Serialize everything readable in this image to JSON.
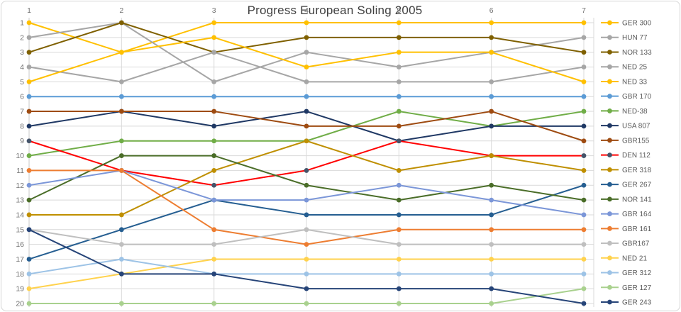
{
  "window": {
    "background": "#ffffff",
    "border_color": "#d6d6d6"
  },
  "chart_data": {
    "type": "line",
    "title": "Progress European Soling 2005",
    "title_color": "#404040",
    "xlabel": "",
    "ylabel": "",
    "x_ticks": [
      "1",
      "2",
      "3",
      "4",
      "5",
      "6",
      "7"
    ],
    "y_ticks": [
      "1",
      "2",
      "3",
      "4",
      "5",
      "6",
      "7",
      "8",
      "9",
      "10",
      "11",
      "12",
      "13",
      "14",
      "15",
      "16",
      "17",
      "18",
      "19",
      "20"
    ],
    "y_axis": {
      "min": 1,
      "max": 20,
      "inverted": true
    },
    "grid": true,
    "grid_color": "#d9d9d9",
    "axis_tick_color": "#737373",
    "legend_position": "right",
    "legend_text_color": "#595959",
    "series": [
      {
        "name": "GER 300",
        "color": "#FFC000",
        "marker": "#FFC000",
        "values": [
          1,
          3,
          1,
          1,
          1,
          1,
          1
        ]
      },
      {
        "name": "HUN 77",
        "color": "#A6A6A6",
        "marker": "#A6A6A6",
        "values": [
          2,
          1,
          5,
          3,
          4,
          3,
          2
        ]
      },
      {
        "name": "NOR 133",
        "color": "#7F6000",
        "marker": "#7F6000",
        "values": [
          3,
          1,
          3,
          2,
          2,
          2,
          3
        ]
      },
      {
        "name": "NED 25",
        "color": "#A6A6A6",
        "marker": "#A6A6A6",
        "values": [
          4,
          5,
          3,
          5,
          5,
          5,
          4
        ]
      },
      {
        "name": "NED 33",
        "color": "#FFC000",
        "marker": "#FFC000",
        "values": [
          5,
          3,
          2,
          4,
          3,
          3,
          5
        ]
      },
      {
        "name": "GBR 170",
        "color": "#5B9BD5",
        "marker": "#5B9BD5",
        "values": [
          6,
          6,
          6,
          6,
          6,
          6,
          6
        ]
      },
      {
        "name": "NED-38",
        "color": "#70AD47",
        "marker": "#70AD47",
        "values": [
          10,
          9,
          9,
          9,
          7,
          8,
          7
        ]
      },
      {
        "name": "USA 807",
        "color": "#1F3864",
        "marker": "#1F3864",
        "values": [
          8,
          7,
          8,
          7,
          9,
          8,
          8
        ]
      },
      {
        "name": "GBR155",
        "color": "#9E4B11",
        "marker": "#9E4B11",
        "values": [
          7,
          7,
          7,
          8,
          8,
          7,
          9
        ]
      },
      {
        "name": "DEN 112",
        "color": "#FF0000",
        "marker": "#44546A",
        "values": [
          9,
          11,
          12,
          11,
          9,
          10,
          10
        ]
      },
      {
        "name": "GER 318",
        "color": "#BF8F00",
        "marker": "#BF8F00",
        "values": [
          14,
          14,
          11,
          9,
          11,
          10,
          11
        ]
      },
      {
        "name": "GER 267",
        "color": "#255E91",
        "marker": "#255E91",
        "values": [
          17,
          15,
          13,
          14,
          14,
          14,
          12
        ]
      },
      {
        "name": "NOR 141",
        "color": "#4A6D28",
        "marker": "#4A6D28",
        "values": [
          13,
          10,
          10,
          12,
          13,
          12,
          13
        ]
      },
      {
        "name": "GBR 164",
        "color": "#7B96D8",
        "marker": "#7B96D8",
        "values": [
          12,
          11,
          13,
          13,
          12,
          13,
          14
        ]
      },
      {
        "name": "GBR 161",
        "color": "#ED7D31",
        "marker": "#ED7D31",
        "values": [
          11,
          11,
          15,
          16,
          15,
          15,
          15
        ]
      },
      {
        "name": "GBR167",
        "color": "#BFBFBF",
        "marker": "#BFBFBF",
        "values": [
          15,
          16,
          16,
          15,
          16,
          16,
          16
        ]
      },
      {
        "name": "NED 21",
        "color": "#FFD24D",
        "marker": "#FFD24D",
        "values": [
          19,
          18,
          17,
          17,
          17,
          17,
          17
        ]
      },
      {
        "name": "GER 312",
        "color": "#9DC3E6",
        "marker": "#9DC3E6",
        "values": [
          18,
          17,
          18,
          18,
          18,
          18,
          18
        ]
      },
      {
        "name": "GER 127",
        "color": "#A9D18E",
        "marker": "#A9D18E",
        "values": [
          20,
          20,
          20,
          20,
          20,
          20,
          19
        ]
      },
      {
        "name": "GER 243",
        "color": "#264478",
        "marker": "#264478",
        "values": [
          15,
          18,
          18,
          19,
          19,
          19,
          20
        ]
      }
    ]
  }
}
